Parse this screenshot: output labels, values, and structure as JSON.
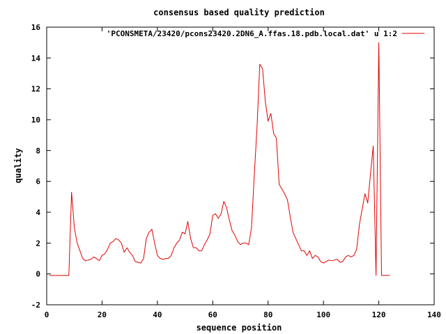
{
  "chart_data": {
    "type": "line",
    "title": "consensus based quality prediction",
    "xlabel": "sequence position",
    "ylabel": "quality",
    "xlim": [
      0,
      140
    ],
    "ylim": [
      -2,
      16
    ],
    "x_ticks": [
      0,
      20,
      40,
      60,
      80,
      100,
      120,
      140
    ],
    "y_ticks": [
      -2,
      0,
      2,
      4,
      6,
      8,
      10,
      12,
      14,
      16
    ],
    "grid": false,
    "legend_position": "top-right",
    "series": [
      {
        "name": "'PCONSMETA/23420/pcons23420.2DN6_A.ffas.18.pdb.local.dat' u 1:2",
        "color": "#e00000",
        "x": [
          1,
          2,
          3,
          4,
          5,
          6,
          7,
          8,
          9,
          10,
          11,
          12,
          13,
          14,
          15,
          16,
          17,
          18,
          19,
          20,
          21,
          22,
          23,
          24,
          25,
          26,
          27,
          28,
          29,
          30,
          31,
          32,
          33,
          34,
          35,
          36,
          37,
          38,
          39,
          40,
          41,
          42,
          43,
          44,
          45,
          46,
          47,
          48,
          49,
          50,
          51,
          52,
          53,
          54,
          55,
          56,
          57,
          58,
          59,
          60,
          61,
          62,
          63,
          64,
          65,
          66,
          67,
          68,
          69,
          70,
          71,
          72,
          73,
          74,
          75,
          76,
          77,
          78,
          79,
          80,
          81,
          82,
          83,
          84,
          85,
          86,
          87,
          88,
          89,
          90,
          91,
          92,
          93,
          94,
          95,
          96,
          97,
          98,
          99,
          100,
          101,
          102,
          103,
          104,
          105,
          106,
          107,
          108,
          109,
          110,
          111,
          112,
          113,
          114,
          115,
          116,
          117,
          118,
          119,
          120,
          121,
          122,
          123,
          124
        ],
        "y": [
          -0.1,
          -0.1,
          -0.1,
          -0.1,
          -0.1,
          -0.1,
          -0.1,
          -0.1,
          5.3,
          3.0,
          2.0,
          1.5,
          1.0,
          0.85,
          0.9,
          0.95,
          1.1,
          1.0,
          0.85,
          1.2,
          1.3,
          1.6,
          2.0,
          2.1,
          2.3,
          2.2,
          2.0,
          1.4,
          1.7,
          1.4,
          1.2,
          0.8,
          0.75,
          0.7,
          1.0,
          2.3,
          2.7,
          2.9,
          2.0,
          1.2,
          1.0,
          0.95,
          1.0,
          1.0,
          1.2,
          1.7,
          2.0,
          2.2,
          2.7,
          2.6,
          3.4,
          2.3,
          1.7,
          1.7,
          1.5,
          1.5,
          1.9,
          2.2,
          2.6,
          3.8,
          3.9,
          3.6,
          3.9,
          4.7,
          4.3,
          3.5,
          2.8,
          2.5,
          2.1,
          1.9,
          2.0,
          2.0,
          1.9,
          3.0,
          6.4,
          9.5,
          13.6,
          13.3,
          11.2,
          9.9,
          10.4,
          9.1,
          8.8,
          5.8,
          5.5,
          5.2,
          4.8,
          3.7,
          2.7,
          2.3,
          1.9,
          1.5,
          1.5,
          1.2,
          1.5,
          1.0,
          1.2,
          1.1,
          0.8,
          0.7,
          0.8,
          0.9,
          0.85,
          0.9,
          0.95,
          0.75,
          0.8,
          1.1,
          1.2,
          1.1,
          1.2,
          1.6,
          3.2,
          4.2,
          5.2,
          4.6,
          6.5,
          8.3,
          -0.1,
          15.0,
          -0.1,
          -0.1,
          -0.1,
          -0.1
        ]
      }
    ]
  }
}
